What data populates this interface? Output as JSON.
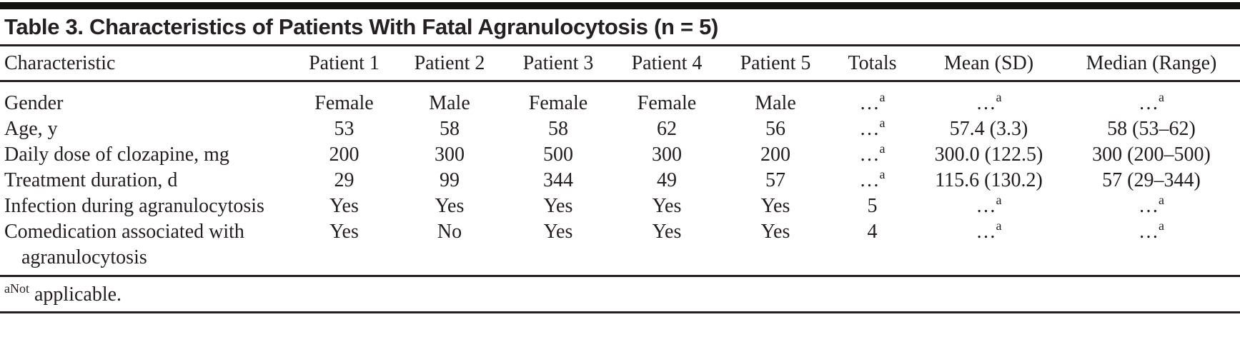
{
  "table": {
    "title": "Table 3. Characteristics of Patients With Fatal Agranulocytosis (n = 5)",
    "columns": [
      "Characteristic",
      "Patient 1",
      "Patient 2",
      "Patient 3",
      "Patient 4",
      "Patient 5",
      "Totals",
      "Mean (SD)",
      "Median (Range)"
    ],
    "rows": [
      {
        "characteristic": "Gender",
        "values": [
          "Female",
          "Male",
          "Female",
          "Female",
          "Male",
          "…^a",
          "…^a",
          "…^a"
        ]
      },
      {
        "characteristic": "Age, y",
        "values": [
          "53",
          "58",
          "58",
          "62",
          "56",
          "…^a",
          "57.4 (3.3)",
          "58 (53–62)"
        ]
      },
      {
        "characteristic": "Daily dose of clozapine, mg",
        "values": [
          "200",
          "300",
          "500",
          "300",
          "200",
          "…^a",
          "300.0 (122.5)",
          "300 (200–500)"
        ]
      },
      {
        "characteristic": "Treatment duration, d",
        "values": [
          "29",
          "99",
          "344",
          "49",
          "57",
          "…^a",
          "115.6 (130.2)",
          "57 (29–344)"
        ]
      },
      {
        "characteristic": "Infection during agranulocytosis",
        "values": [
          "Yes",
          "Yes",
          "Yes",
          "Yes",
          "Yes",
          "5",
          "…^a",
          "…^a"
        ]
      },
      {
        "characteristic": "Comedication associated with agranulocytosis",
        "values": [
          "Yes",
          "No",
          "Yes",
          "Yes",
          "Yes",
          "4",
          "…^a",
          "…^a"
        ]
      }
    ],
    "footnote": "^aNot applicable.",
    "colors": {
      "ink": "#221e1e",
      "rule": "#231f1f",
      "top_bar": "#151212",
      "background": "#ffffff"
    }
  }
}
